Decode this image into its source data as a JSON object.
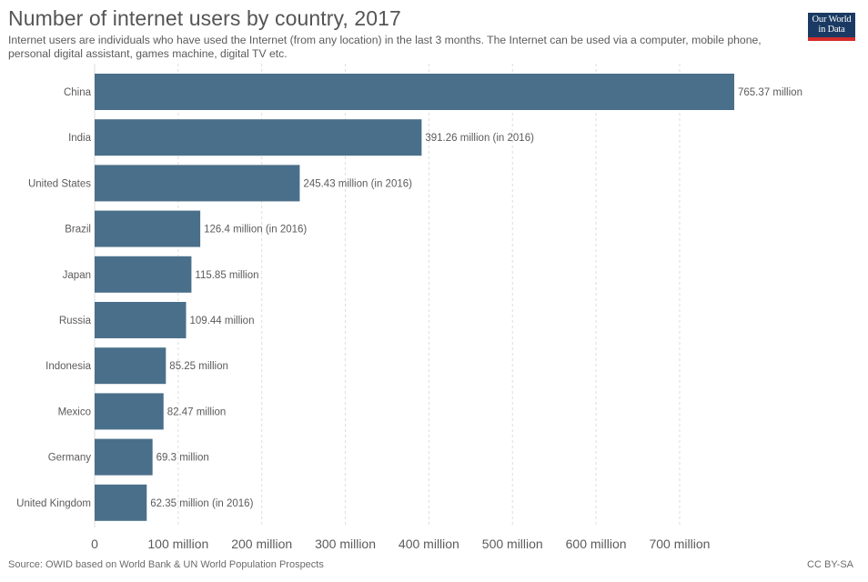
{
  "header": {
    "title": "Number of internet users by country, 2017",
    "subtitle": "Internet users are individuals who have used the Internet (from any location) in the last 3 months. The Internet can be used via a computer, mobile phone, personal digital assistant, games machine, digital TV etc."
  },
  "logo": {
    "line1": "Our World",
    "line2": "in Data"
  },
  "footer": {
    "source": "Source: OWID based on World Bank & UN World Population Prospects",
    "license": "CC BY-SA"
  },
  "colors": {
    "bar": "#4a6f8a",
    "grid": "#dddddd",
    "logo_bg": "#1a3a63",
    "logo_accent": "#d42b2b"
  },
  "chart_data": {
    "type": "bar",
    "orientation": "horizontal",
    "categories": [
      "China",
      "India",
      "United States",
      "Brazil",
      "Japan",
      "Russia",
      "Indonesia",
      "Mexico",
      "Germany",
      "United Kingdom"
    ],
    "values": [
      765.37,
      391.26,
      245.43,
      126.4,
      115.85,
      109.44,
      85.25,
      82.47,
      69.3,
      62.35
    ],
    "value_labels": [
      "765.37 million",
      "391.26 million (in 2016)",
      "245.43 million (in 2016)",
      "126.4 million (in 2016)",
      "115.85 million",
      "109.44 million",
      "85.25 million",
      "82.47 million",
      "69.3 million",
      "62.35 million (in 2016)"
    ],
    "x_ticks": [
      0,
      100,
      200,
      300,
      400,
      500,
      600,
      700
    ],
    "x_tick_labels": [
      "0",
      "100 million",
      "200 million",
      "300 million",
      "400 million",
      "500 million",
      "600 million",
      "700 million"
    ],
    "xlim": [
      0,
      765.37
    ],
    "grid": true,
    "legend": "none"
  }
}
